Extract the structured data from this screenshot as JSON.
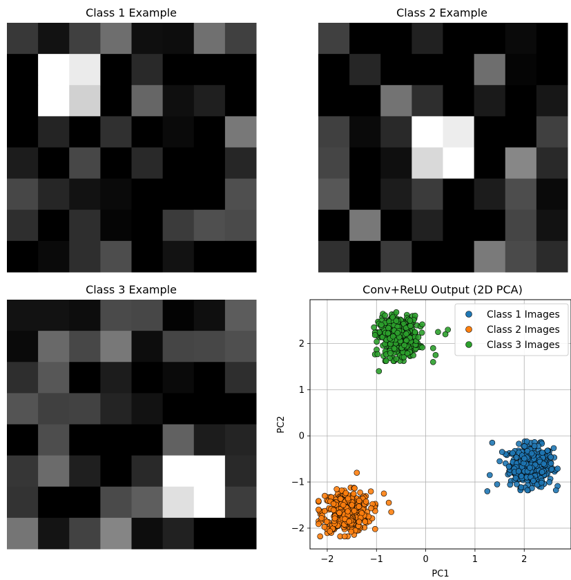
{
  "chart_data": [
    {
      "type": "heatmap",
      "title": "Class 1 Example",
      "colormap": "gray",
      "axes_visible": false,
      "values": [
        [
          0.22,
          0.07,
          0.25,
          0.43,
          0.06,
          0.05,
          0.44,
          0.25
        ],
        [
          0.0,
          1.0,
          0.92,
          0.0,
          0.16,
          0.0,
          0.0,
          0.0
        ],
        [
          0.0,
          1.0,
          0.82,
          0.0,
          0.4,
          0.06,
          0.12,
          0.0
        ],
        [
          0.0,
          0.14,
          0.0,
          0.19,
          0.0,
          0.04,
          0.0,
          0.47
        ],
        [
          0.11,
          0.0,
          0.28,
          0.0,
          0.16,
          0.0,
          0.0,
          0.15
        ],
        [
          0.28,
          0.15,
          0.07,
          0.04,
          0.0,
          0.0,
          0.0,
          0.31
        ],
        [
          0.18,
          0.0,
          0.18,
          0.02,
          0.0,
          0.23,
          0.31,
          0.29
        ],
        [
          0.0,
          0.04,
          0.18,
          0.3,
          0.0,
          0.07,
          0.0,
          0.0
        ]
      ]
    },
    {
      "type": "heatmap",
      "title": "Class 2 Example",
      "colormap": "gray",
      "axes_visible": false,
      "values": [
        [
          0.25,
          0.0,
          0.0,
          0.13,
          0.0,
          0.0,
          0.04,
          0.0
        ],
        [
          0.0,
          0.15,
          0.0,
          0.0,
          0.0,
          0.43,
          0.02,
          0.0
        ],
        [
          0.0,
          0.0,
          0.45,
          0.18,
          0.0,
          0.1,
          0.0,
          0.09
        ],
        [
          0.25,
          0.04,
          0.16,
          1.0,
          0.93,
          0.0,
          0.0,
          0.25
        ],
        [
          0.27,
          0.0,
          0.06,
          0.85,
          1.0,
          0.0,
          0.53,
          0.16
        ],
        [
          0.34,
          0.0,
          0.11,
          0.23,
          0.0,
          0.11,
          0.3,
          0.04
        ],
        [
          0.0,
          0.47,
          0.0,
          0.13,
          0.0,
          0.0,
          0.27,
          0.07
        ],
        [
          0.19,
          0.0,
          0.23,
          0.0,
          0.0,
          0.48,
          0.29,
          0.17
        ]
      ]
    },
    {
      "type": "heatmap",
      "title": "Class 3 Example",
      "colormap": "gray",
      "axes_visible": false,
      "values": [
        [
          0.07,
          0.07,
          0.05,
          0.29,
          0.28,
          0.01,
          0.06,
          0.36
        ],
        [
          0.04,
          0.41,
          0.28,
          0.47,
          0.05,
          0.27,
          0.28,
          0.31
        ],
        [
          0.18,
          0.34,
          0.0,
          0.11,
          0.0,
          0.04,
          0.0,
          0.18
        ],
        [
          0.33,
          0.25,
          0.26,
          0.14,
          0.07,
          0.0,
          0.0,
          0.0
        ],
        [
          0.0,
          0.3,
          0.0,
          0.0,
          0.0,
          0.38,
          0.11,
          0.14
        ],
        [
          0.21,
          0.42,
          0.12,
          0.0,
          0.16,
          1.0,
          1.0,
          0.16
        ],
        [
          0.2,
          0.0,
          0.0,
          0.29,
          0.37,
          0.88,
          1.0,
          0.24
        ],
        [
          0.46,
          0.08,
          0.26,
          0.52,
          0.05,
          0.13,
          0.0,
          0.0
        ]
      ]
    },
    {
      "type": "scatter",
      "title": "Conv+ReLU Output (2D PCA)",
      "xlabel": "PC1",
      "ylabel": "PC2",
      "xlim": [
        -2.35,
        2.95
      ],
      "ylim": [
        -2.45,
        2.95
      ],
      "xticks": [
        -2,
        -1,
        0,
        1,
        2
      ],
      "yticks": [
        -2,
        -1,
        0,
        1,
        2
      ],
      "grid": true,
      "legend_position": "top-right",
      "series": [
        {
          "name": "Class 1 Images",
          "color": "#1f77b4",
          "center": [
            2.15,
            -0.65
          ],
          "spread": [
            0.22,
            0.22
          ],
          "count": 380,
          "outliers": [
            [
              1.25,
              -1.2
            ],
            [
              1.35,
              -0.15
            ],
            [
              1.5,
              -0.55
            ],
            [
              1.3,
              -0.85
            ],
            [
              1.45,
              -1.05
            ],
            [
              1.55,
              -0.35
            ]
          ]
        },
        {
          "name": "Class 2 Images",
          "color": "#ff7f0e",
          "center": [
            -1.6,
            -1.65
          ],
          "spread": [
            0.24,
            0.22
          ],
          "count": 380,
          "outliers": [
            [
              -0.75,
              -1.45
            ],
            [
              -0.7,
              -1.65
            ],
            [
              -0.85,
              -1.25
            ],
            [
              -2.05,
              -1.3
            ],
            [
              -1.4,
              -0.8
            ]
          ]
        },
        {
          "name": "Class 3 Images",
          "color": "#2ca02c",
          "center": [
            -0.55,
            2.15
          ],
          "spread": [
            0.2,
            0.22
          ],
          "count": 380,
          "outliers": [
            [
              0.15,
              1.9
            ],
            [
              0.2,
              1.75
            ],
            [
              0.25,
              2.25
            ],
            [
              0.4,
              2.2
            ],
            [
              0.45,
              2.3
            ],
            [
              0.15,
              1.6
            ],
            [
              -0.95,
              1.4
            ],
            [
              -1.05,
              2.35
            ]
          ]
        }
      ]
    }
  ]
}
